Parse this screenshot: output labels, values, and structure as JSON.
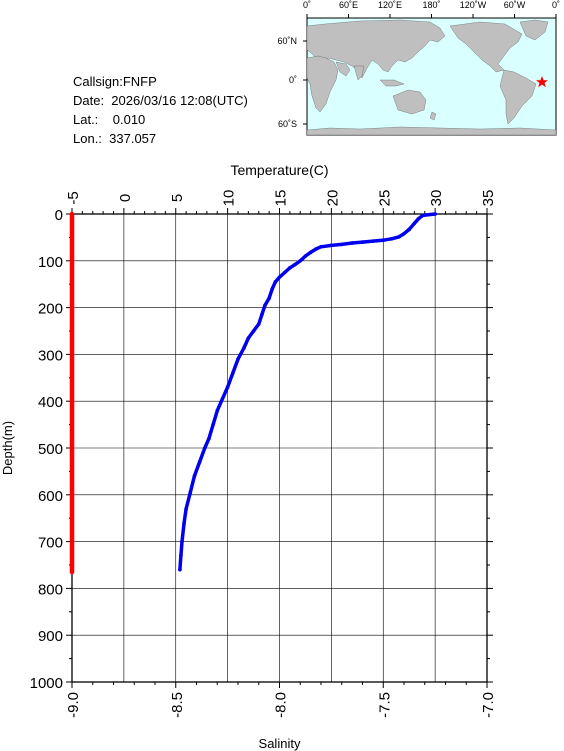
{
  "station": {
    "callsign_line": "Callsign:FNFP",
    "date_line": "Date:  2026/03/16 12:08(UTC)",
    "lat_line": "Lat.:    0.010",
    "lon_line": "Lon.:  337.057"
  },
  "map": {
    "top_labels": [
      "0˚",
      "60˚E",
      "120˚E",
      "180˚",
      "120˚W",
      "60˚W",
      "0˚"
    ],
    "left_labels": [
      "60˚N",
      "0˚",
      "60˚S"
    ],
    "ocean_color": "#d9ffff",
    "land_color": "#bfbfbf",
    "marker": {
      "lon": 337.057,
      "lat": 0.01,
      "color": "#ff0000",
      "icon": "star-icon"
    }
  },
  "chart_data": {
    "type": "line",
    "top_axis": {
      "title": "Temperature(C)",
      "range": [
        -5,
        35
      ],
      "ticks": [
        "-5",
        "0",
        "5",
        "10",
        "15",
        "20",
        "25",
        "30",
        "35"
      ]
    },
    "bottom_axis": {
      "title": "Salinity",
      "range": [
        -9.0,
        -7.0
      ],
      "ticks": [
        "-9.0",
        "-8.5",
        "-8.0",
        "-7.5",
        "-7.0"
      ]
    },
    "y_axis": {
      "title": "Depth(m)",
      "range": [
        0,
        1000
      ],
      "inverted": true,
      "ticks": [
        "0",
        "100",
        "200",
        "300",
        "400",
        "500",
        "600",
        "700",
        "800",
        "900",
        "1000"
      ]
    },
    "grid": true,
    "series": [
      {
        "axis": "temperature",
        "color": "#0000ee",
        "points": [
          [
            30.0,
            0
          ],
          [
            28.8,
            3
          ],
          [
            28.4,
            10
          ],
          [
            28.0,
            20
          ],
          [
            27.5,
            33
          ],
          [
            27.0,
            42
          ],
          [
            26.5,
            49
          ],
          [
            25.8,
            53
          ],
          [
            25.0,
            56
          ],
          [
            24.0,
            58
          ],
          [
            23.0,
            60
          ],
          [
            22.0,
            62
          ],
          [
            21.0,
            65
          ],
          [
            20.0,
            67
          ],
          [
            19.0,
            70
          ],
          [
            18.5,
            75
          ],
          [
            18.0,
            82
          ],
          [
            17.5,
            90
          ],
          [
            17.0,
            100
          ],
          [
            16.5,
            108
          ],
          [
            16.0,
            115
          ],
          [
            15.5,
            125
          ],
          [
            15.0,
            135
          ],
          [
            14.6,
            145
          ],
          [
            14.3,
            160
          ],
          [
            14.0,
            180
          ],
          [
            13.6,
            195
          ],
          [
            13.3,
            215
          ],
          [
            13.0,
            235
          ],
          [
            12.5,
            250
          ],
          [
            12.0,
            265
          ],
          [
            11.6,
            285
          ],
          [
            11.0,
            310
          ],
          [
            10.5,
            340
          ],
          [
            10.0,
            370
          ],
          [
            9.5,
            395
          ],
          [
            9.0,
            420
          ],
          [
            8.6,
            450
          ],
          [
            8.2,
            480
          ],
          [
            7.8,
            500
          ],
          [
            7.3,
            530
          ],
          [
            6.8,
            560
          ],
          [
            6.4,
            595
          ],
          [
            6.0,
            630
          ],
          [
            5.8,
            660
          ],
          [
            5.6,
            700
          ],
          [
            5.5,
            730
          ],
          [
            5.4,
            760
          ]
        ]
      },
      {
        "axis": "salinity",
        "color": "#ff0000",
        "points": [
          [
            -9.0,
            0
          ],
          [
            -9.0,
            100
          ],
          [
            -9.0,
            200
          ],
          [
            -9.0,
            300
          ],
          [
            -9.0,
            400
          ],
          [
            -9.0,
            500
          ],
          [
            -9.0,
            600
          ],
          [
            -9.0,
            700
          ],
          [
            -9.0,
            765
          ]
        ]
      }
    ]
  }
}
